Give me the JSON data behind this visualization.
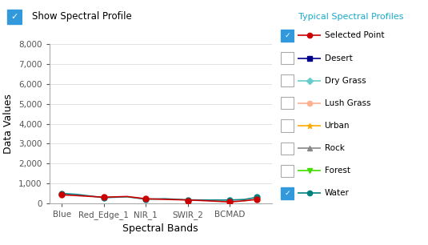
{
  "bands": [
    "Blue",
    "Red_Edge_1",
    "NIR_1",
    "SWIR_2",
    "BCMAD"
  ],
  "sp_x": [
    0,
    0.35,
    1,
    1.55,
    2,
    2.45,
    3,
    3.45,
    4,
    4.35,
    4.65
  ],
  "sp_y": [
    430,
    390,
    310,
    345,
    230,
    200,
    170,
    130,
    70,
    130,
    200
  ],
  "water_x": [
    0,
    0.35,
    1,
    1.55,
    2,
    2.45,
    3,
    3.45,
    4,
    4.35,
    4.65
  ],
  "water_y": [
    495,
    450,
    285,
    330,
    210,
    230,
    175,
    165,
    165,
    195,
    305
  ],
  "sp_marker_x": [
    0,
    1,
    2,
    3,
    4,
    4.65
  ],
  "sp_marker_y": [
    430,
    310,
    230,
    130,
    70,
    200
  ],
  "water_marker_x": [
    0,
    1,
    2,
    3,
    4,
    4.65
  ],
  "water_marker_y": [
    495,
    285,
    210,
    175,
    165,
    305
  ],
  "selected_point_color": "#cc0000",
  "water_color": "#008080",
  "ylim": [
    0,
    8000
  ],
  "yticks": [
    0,
    1000,
    2000,
    3000,
    4000,
    5000,
    6000,
    7000,
    8000
  ],
  "ytick_labels": [
    "0",
    "1,000",
    "2,000",
    "3,000",
    "4,000",
    "5,000",
    "6,000",
    "7,000",
    "8,000"
  ],
  "xlabel": "Spectral Bands",
  "ylabel": "Data Values",
  "header_text": "Show Spectral Profile",
  "legend_title": "Typical Spectral Profiles",
  "legend_title_color": "#1aabcc",
  "legend_entries": [
    {
      "label": "Selected Point",
      "color": "#cc0000",
      "marker": "o",
      "linestyle": "-",
      "checked": true
    },
    {
      "label": "Desert",
      "color": "#00008b",
      "marker": "s",
      "linestyle": "-",
      "checked": false
    },
    {
      "label": "Dry Grass",
      "color": "#66cccc",
      "marker": "D",
      "linestyle": "-",
      "checked": false
    },
    {
      "label": "Lush Grass",
      "color": "#ffb090",
      "marker": "o",
      "linestyle": "-",
      "checked": false
    },
    {
      "label": "Urban",
      "color": "#ffaa00",
      "marker": "*",
      "linestyle": "-",
      "checked": false
    },
    {
      "label": "Rock",
      "color": "#888888",
      "marker": "^",
      "linestyle": "-",
      "checked": false
    },
    {
      "label": "Forest",
      "color": "#44dd00",
      "marker": "v",
      "linestyle": "-",
      "checked": false
    },
    {
      "label": "Water",
      "color": "#008080",
      "marker": "o",
      "linestyle": "-",
      "checked": true
    }
  ],
  "background_color": "#ffffff",
  "checkbox_color": "#3399dd",
  "border_color": "#aaaaaa",
  "grid_color": "#dddddd",
  "spine_color": "#aaaaaa",
  "tick_color": "#555555"
}
